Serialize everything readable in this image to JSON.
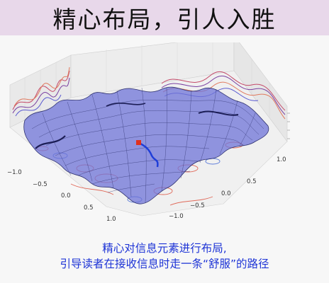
{
  "header": {
    "title": "精心布局，引人入胜"
  },
  "figure": {
    "tick_labels_left": [
      "−1.0",
      "−0.5",
      "0.0",
      "0.5",
      "1.0"
    ],
    "tick_labels_right": [
      "1.0",
      "0.5",
      "0.0",
      "−0.5",
      "−1.0"
    ],
    "colors": {
      "surface_fill": "#6f74d8",
      "surface_grid": "#2f3270",
      "path": "#1f3ed8",
      "marker": "#e0301e",
      "contour_red": "#e06a5a",
      "contour_blue": "#5a7ad8"
    }
  },
  "caption": {
    "line1": "精心对信息元素进行布局,",
    "line2": "引导读者在接收信息时走一条“舒服”的路径"
  }
}
